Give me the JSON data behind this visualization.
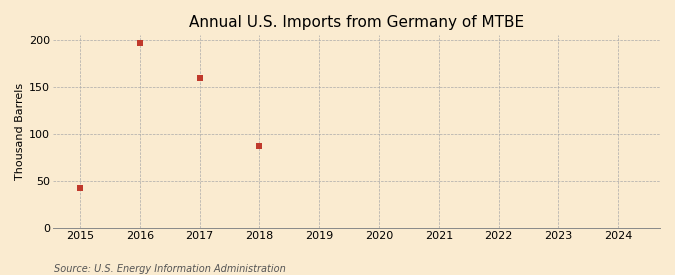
{
  "title": "Annual U.S. Imports from Germany of MTBE",
  "ylabel": "Thousand Barrels",
  "source": "Source: U.S. Energy Information Administration",
  "background_color": "#faebd0",
  "plot_bg_color": "#faebd0",
  "data_years": [
    2015,
    2016,
    2017,
    2018
  ],
  "data_values": [
    43,
    197,
    160,
    87
  ],
  "marker_color": "#c0392b",
  "marker_size": 4,
  "xmin": 2014.55,
  "xmax": 2024.7,
  "ymin": 0,
  "ymax": 205,
  "yticks": [
    0,
    50,
    100,
    150,
    200
  ],
  "xticks": [
    2015,
    2016,
    2017,
    2018,
    2019,
    2020,
    2021,
    2022,
    2023,
    2024
  ],
  "grid_color": "#aaaaaa",
  "grid_style": "--",
  "title_fontsize": 11,
  "label_fontsize": 8,
  "tick_fontsize": 8,
  "source_fontsize": 7
}
